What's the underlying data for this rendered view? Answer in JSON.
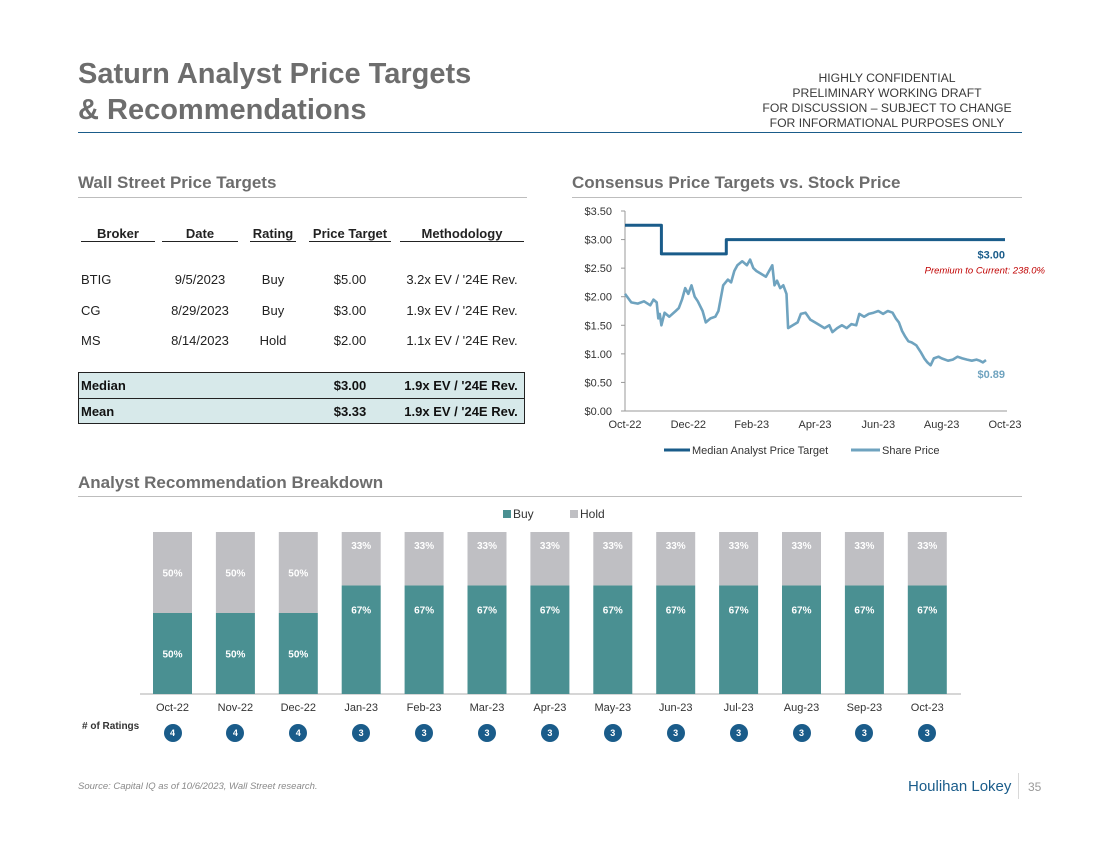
{
  "page": {
    "title_line1": "Saturn Analyst Price Targets",
    "title_line2": "& Recommendations",
    "confidential": [
      "HIGHLY CONFIDENTIAL",
      "PRELIMINARY WORKING DRAFT",
      "FOR DISCUSSION – SUBJECT TO CHANGE",
      "FOR INFORMATIONAL PURPOSES ONLY"
    ],
    "footnote": "Source: Capital IQ as of 10/6/2023, Wall Street research.",
    "brand": "Houlihan Lokey",
    "page_number": "35"
  },
  "price_targets": {
    "section_title": "Wall Street Price Targets",
    "headers": [
      "Broker",
      "Date",
      "Rating",
      "Price Target",
      "Methodology"
    ],
    "rows": [
      [
        "BTIG",
        "9/5/2023",
        "Buy",
        "$5.00",
        "3.2x EV / '24E Rev."
      ],
      [
        "CG",
        "8/29/2023",
        "Buy",
        "$3.00",
        "1.9x EV / '24E Rev."
      ],
      [
        "MS",
        "8/14/2023",
        "Hold",
        "$2.00",
        "1.1x EV / '24E Rev."
      ]
    ],
    "summary": [
      {
        "label": "Median",
        "target": "$3.00",
        "methodology": "1.9x EV / '24E Rev."
      },
      {
        "label": "Mean",
        "target": "$3.33",
        "methodology": "1.9x EV / '24E Rev."
      }
    ]
  },
  "colors": {
    "median_line": "#1a5c8a",
    "share_line": "#6fa3bf",
    "buy": "#4a9092",
    "hold": "#bfbfc3",
    "premium_text": "#c00000"
  },
  "chart_data": [
    {
      "type": "line",
      "title": "Consensus Price Targets vs. Stock Price",
      "x_ticks": [
        "Oct-22",
        "Dec-22",
        "Feb-23",
        "Apr-23",
        "Jun-23",
        "Aug-23",
        "Oct-23"
      ],
      "y_ticks": [
        "$0.00",
        "$0.50",
        "$1.00",
        "$1.50",
        "$2.00",
        "$2.50",
        "$3.00",
        "$3.50"
      ],
      "ylim": [
        0,
        3.5
      ],
      "x_unit": "months since Oct-22",
      "xlim": [
        0,
        12
      ],
      "series": [
        {
          "name": "Median Analyst Price Target",
          "points": [
            [
              0,
              3.25
            ],
            [
              1.15,
              3.25
            ],
            [
              1.15,
              2.75
            ],
            [
              3.2,
              2.75
            ],
            [
              3.2,
              3.0
            ],
            [
              12,
              3.0
            ]
          ]
        },
        {
          "name": "Share Price",
          "points": [
            [
              0,
              2.05
            ],
            [
              0.2,
              1.9
            ],
            [
              0.4,
              1.88
            ],
            [
              0.6,
              1.92
            ],
            [
              0.8,
              1.85
            ],
            [
              0.9,
              1.95
            ],
            [
              1.0,
              1.9
            ],
            [
              1.05,
              1.62
            ],
            [
              1.1,
              1.7
            ],
            [
              1.15,
              1.5
            ],
            [
              1.25,
              1.72
            ],
            [
              1.4,
              1.65
            ],
            [
              1.6,
              1.75
            ],
            [
              1.7,
              1.8
            ],
            [
              1.8,
              1.95
            ],
            [
              1.9,
              2.15
            ],
            [
              2.0,
              2.05
            ],
            [
              2.1,
              2.2
            ],
            [
              2.2,
              2.0
            ],
            [
              2.3,
              1.92
            ],
            [
              2.45,
              1.75
            ],
            [
              2.55,
              1.55
            ],
            [
              2.7,
              1.62
            ],
            [
              2.85,
              1.65
            ],
            [
              2.95,
              1.75
            ],
            [
              3.1,
              2.2
            ],
            [
              3.25,
              2.3
            ],
            [
              3.35,
              2.25
            ],
            [
              3.45,
              2.45
            ],
            [
              3.55,
              2.55
            ],
            [
              3.7,
              2.62
            ],
            [
              3.85,
              2.55
            ],
            [
              3.95,
              2.65
            ],
            [
              4.05,
              2.5
            ],
            [
              4.15,
              2.45
            ],
            [
              4.3,
              2.4
            ],
            [
              4.45,
              2.35
            ],
            [
              4.55,
              2.45
            ],
            [
              4.65,
              2.55
            ],
            [
              4.72,
              2.2
            ],
            [
              4.8,
              2.28
            ],
            [
              4.9,
              2.15
            ],
            [
              5.0,
              2.2
            ],
            [
              5.1,
              2.05
            ],
            [
              5.15,
              1.45
            ],
            [
              5.3,
              1.5
            ],
            [
              5.45,
              1.55
            ],
            [
              5.55,
              1.7
            ],
            [
              5.7,
              1.72
            ],
            [
              5.85,
              1.6
            ],
            [
              6.0,
              1.55
            ],
            [
              6.15,
              1.5
            ],
            [
              6.3,
              1.45
            ],
            [
              6.45,
              1.5
            ],
            [
              6.55,
              1.38
            ],
            [
              6.7,
              1.45
            ],
            [
              6.85,
              1.5
            ],
            [
              7.0,
              1.45
            ],
            [
              7.15,
              1.52
            ],
            [
              7.3,
              1.5
            ],
            [
              7.4,
              1.7
            ],
            [
              7.55,
              1.65
            ],
            [
              7.7,
              1.7
            ],
            [
              7.85,
              1.72
            ],
            [
              8.0,
              1.75
            ],
            [
              8.15,
              1.7
            ],
            [
              8.3,
              1.75
            ],
            [
              8.45,
              1.72
            ],
            [
              8.55,
              1.62
            ],
            [
              8.65,
              1.55
            ],
            [
              8.75,
              1.4
            ],
            [
              8.85,
              1.3
            ],
            [
              8.95,
              1.22
            ],
            [
              9.05,
              1.2
            ],
            [
              9.2,
              1.15
            ],
            [
              9.35,
              1.02
            ],
            [
              9.45,
              0.92
            ],
            [
              9.55,
              0.85
            ],
            [
              9.65,
              0.8
            ],
            [
              9.75,
              0.92
            ],
            [
              9.9,
              0.95
            ],
            [
              10.0,
              0.92
            ],
            [
              10.2,
              0.88
            ],
            [
              10.35,
              0.9
            ],
            [
              10.5,
              0.95
            ],
            [
              10.65,
              0.92
            ],
            [
              10.8,
              0.9
            ],
            [
              10.95,
              0.88
            ],
            [
              11.1,
              0.9
            ],
            [
              11.2,
              0.88
            ],
            [
              11.3,
              0.85
            ],
            [
              11.4,
              0.89
            ]
          ]
        }
      ],
      "end_label_target": "$3.00",
      "end_label_price": "$0.89",
      "annotation": "Premium to Current: 238.0%",
      "legend": [
        "Median Analyst Price Target",
        "Share Price"
      ]
    },
    {
      "type": "bar",
      "stacked": true,
      "percent": true,
      "title": "Analyst Recommendation Breakdown",
      "categories": [
        "Oct-22",
        "Nov-22",
        "Dec-22",
        "Jan-23",
        "Feb-23",
        "Mar-23",
        "Apr-23",
        "May-23",
        "Jun-23",
        "Jul-23",
        "Aug-23",
        "Sep-23",
        "Oct-23"
      ],
      "series": [
        {
          "name": "Buy",
          "values": [
            50,
            50,
            50,
            67,
            67,
            67,
            67,
            67,
            67,
            67,
            67,
            67,
            67
          ]
        },
        {
          "name": "Hold",
          "values": [
            50,
            50,
            50,
            33,
            33,
            33,
            33,
            33,
            33,
            33,
            33,
            33,
            33
          ]
        }
      ],
      "ylim": [
        0,
        100
      ],
      "legend": [
        "Buy",
        "Hold"
      ],
      "ratings_label": "# of Ratings",
      "ratings_counts": [
        4,
        4,
        4,
        3,
        3,
        3,
        3,
        3,
        3,
        3,
        3,
        3,
        3
      ]
    }
  ]
}
